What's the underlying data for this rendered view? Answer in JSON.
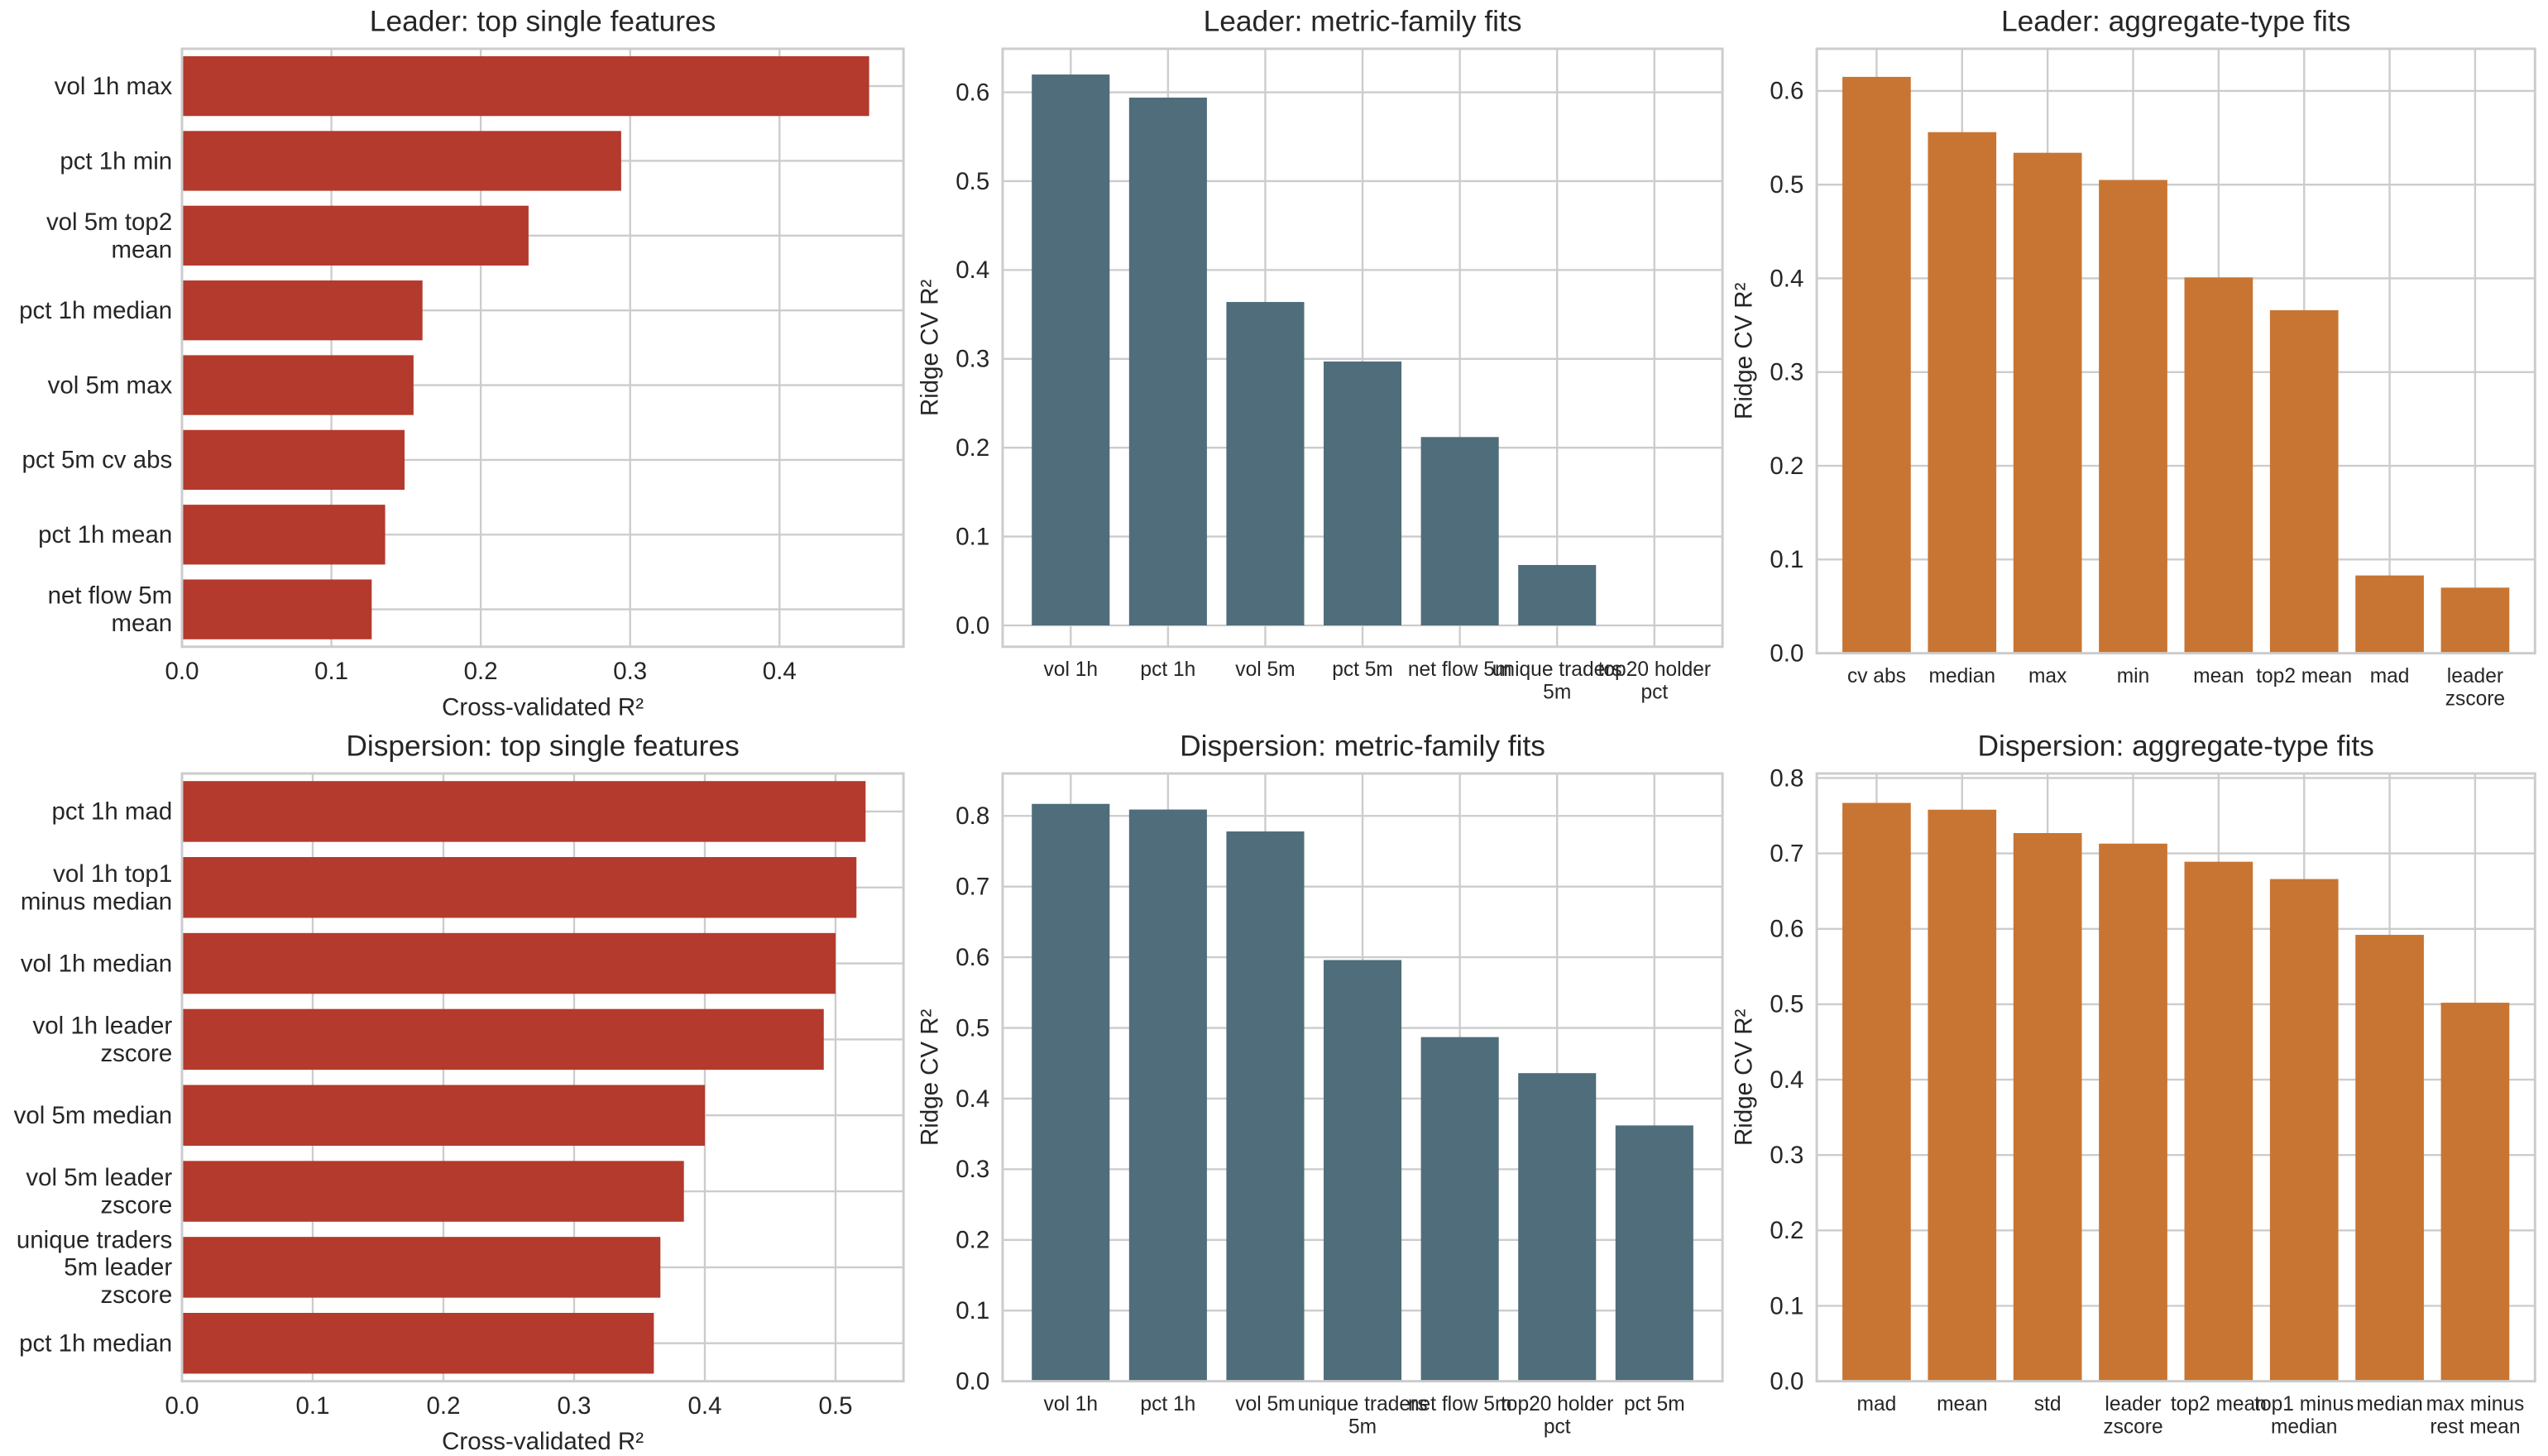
{
  "colors": {
    "leader_single": "#b33a2c",
    "family": "#4f6d7a",
    "aggregate": "#c87533"
  },
  "chart_data": [
    {
      "type": "bar",
      "orientation": "horizontal",
      "title": "Leader: top single features",
      "xlabel": "Cross-validated R²",
      "ylabel": "",
      "categories": [
        "vol 1h max",
        "pct 1h min",
        "vol 5m top2\nmean",
        "pct 1h median",
        "vol 5m max",
        "pct 5m cv abs",
        "pct 1h mean",
        "net flow 5m\nmean"
      ],
      "values": [
        0.46,
        0.294,
        0.232,
        0.161,
        0.155,
        0.149,
        0.136,
        0.127
      ],
      "xlim": [
        0,
        0.483
      ],
      "ticks": [
        "0.0",
        "0.1",
        "0.2",
        "0.3",
        "0.4"
      ],
      "grid": true,
      "color": "#b33a2c"
    },
    {
      "type": "bar",
      "orientation": "vertical",
      "title": "Leader: metric-family fits",
      "xlabel": "",
      "ylabel": "Ridge CV R²",
      "categories": [
        "vol 1h",
        "pct 1h",
        "vol 5m",
        "pct 5m",
        "net flow 5m",
        "unique traders\n5m",
        "top20 holder\npct"
      ],
      "values": [
        0.62,
        0.594,
        0.364,
        0.297,
        0.212,
        0.068,
        0.0
      ],
      "ylim": [
        -0.024,
        0.649
      ],
      "ticks": [
        "0.0",
        "0.1",
        "0.2",
        "0.3",
        "0.4",
        "0.5",
        "0.6"
      ],
      "grid": true,
      "color": "#4f6d7a"
    },
    {
      "type": "bar",
      "orientation": "vertical",
      "title": "Leader: aggregate-type fits",
      "xlabel": "",
      "ylabel": "Ridge CV R²",
      "categories": [
        "cv abs",
        "median",
        "max",
        "min",
        "mean",
        "top2 mean",
        "mad",
        "leader\nzscore"
      ],
      "values": [
        0.615,
        0.556,
        0.534,
        0.505,
        0.401,
        0.366,
        0.083,
        0.07
      ],
      "ylim": [
        0,
        0.645
      ],
      "ticks": [
        "0.0",
        "0.1",
        "0.2",
        "0.3",
        "0.4",
        "0.5",
        "0.6"
      ],
      "grid": true,
      "color": "#c87533"
    },
    {
      "type": "bar",
      "orientation": "horizontal",
      "title": "Dispersion: top single features",
      "xlabel": "Cross-validated R²",
      "ylabel": "",
      "categories": [
        "pct 1h mad",
        "vol 1h top1\nminus median",
        "vol 1h median",
        "vol 1h leader\nzscore",
        "vol 5m median",
        "vol 5m leader\nzscore",
        "unique traders\n5m leader\nzscore",
        "pct 1h median"
      ],
      "values": [
        0.523,
        0.516,
        0.5,
        0.491,
        0.4,
        0.384,
        0.366,
        0.361
      ],
      "xlim": [
        0,
        0.552
      ],
      "ticks": [
        "0.0",
        "0.1",
        "0.2",
        "0.3",
        "0.4",
        "0.5"
      ],
      "grid": true,
      "color": "#b33a2c"
    },
    {
      "type": "bar",
      "orientation": "vertical",
      "title": "Dispersion: metric-family fits",
      "xlabel": "",
      "ylabel": "Ridge CV R²",
      "categories": [
        "vol 1h",
        "pct 1h",
        "vol 5m",
        "unique traders\n5m",
        "net flow 5m",
        "top20 holder\npct",
        "pct 5m"
      ],
      "values": [
        0.817,
        0.809,
        0.778,
        0.596,
        0.487,
        0.436,
        0.362
      ],
      "ylim": [
        0,
        0.86
      ],
      "ticks": [
        "0.0",
        "0.1",
        "0.2",
        "0.3",
        "0.4",
        "0.5",
        "0.6",
        "0.7",
        "0.8"
      ],
      "grid": true,
      "color": "#4f6d7a"
    },
    {
      "type": "bar",
      "orientation": "vertical",
      "title": "Dispersion: aggregate-type fits",
      "xlabel": "",
      "ylabel": "Ridge CV R²",
      "categories": [
        "mad",
        "mean",
        "std",
        "leader\nzscore",
        "top2 mean",
        "top1 minus\nmedian",
        "median",
        "max minus\nrest mean"
      ],
      "values": [
        0.767,
        0.758,
        0.727,
        0.713,
        0.689,
        0.666,
        0.592,
        0.502
      ],
      "ylim": [
        0,
        0.806
      ],
      "ticks": [
        "0.0",
        "0.1",
        "0.2",
        "0.3",
        "0.4",
        "0.5",
        "0.6",
        "0.7",
        "0.8"
      ],
      "grid": true,
      "color": "#c87533"
    }
  ]
}
